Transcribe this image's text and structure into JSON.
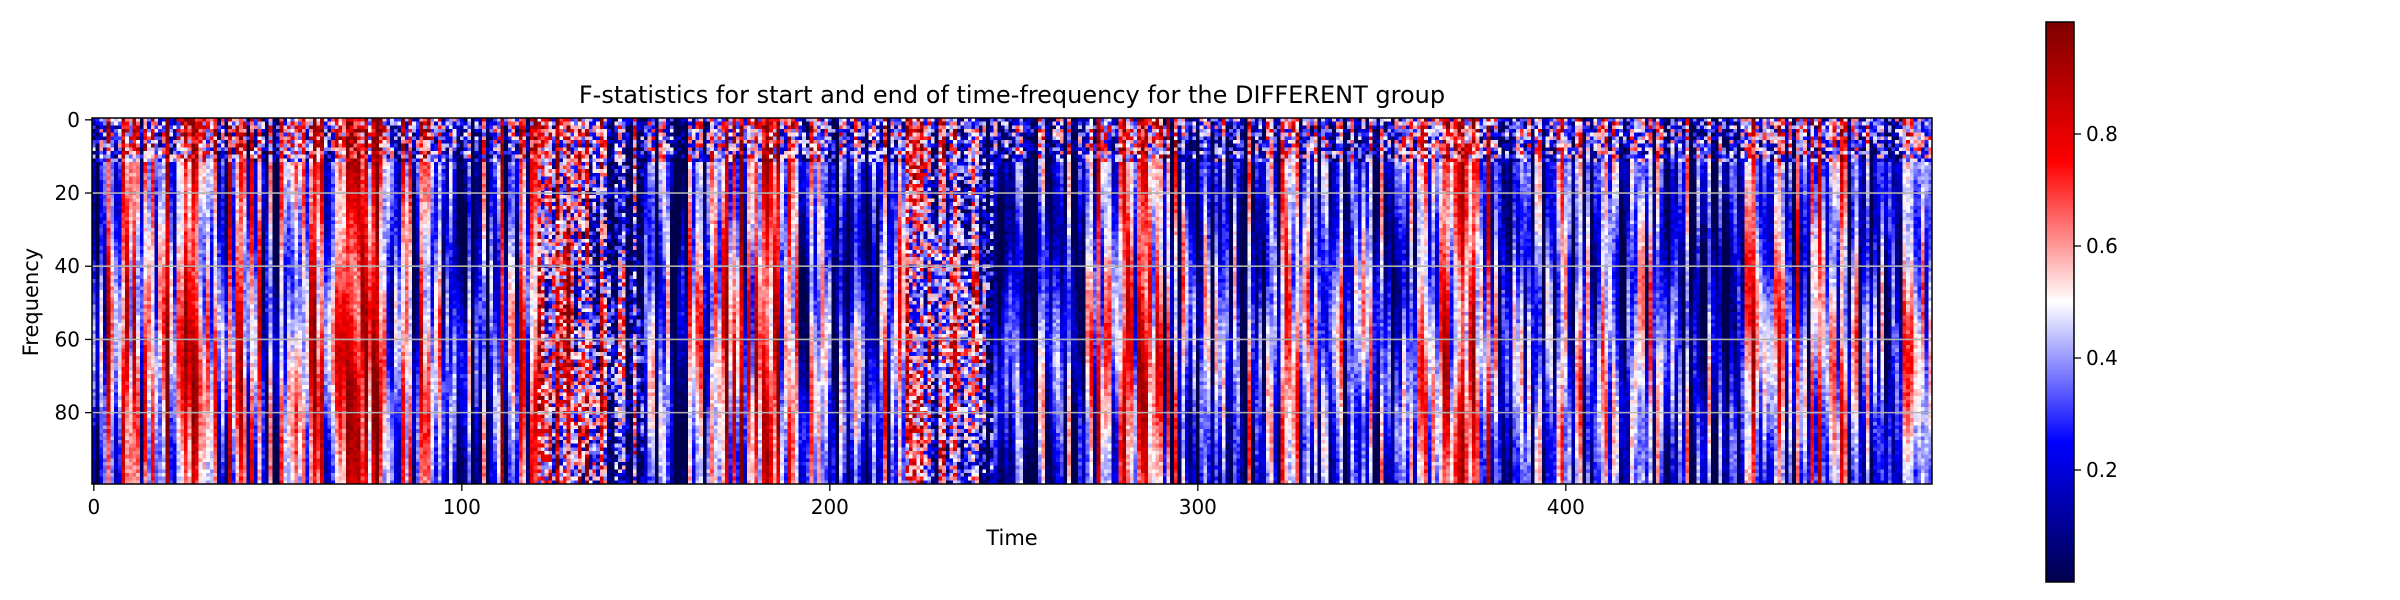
{
  "chart_data": {
    "type": "heatmap",
    "title": "F-statistics for start and end of time-frequency for the DIFFERENT group",
    "xlabel": "Time",
    "ylabel": "Frequency",
    "xlim": [
      0,
      499
    ],
    "ylim": [
      99,
      0
    ],
    "x_ticks": [
      0,
      100,
      200,
      300,
      400
    ],
    "y_ticks": [
      0,
      20,
      40,
      60,
      80
    ],
    "n_time": 500,
    "n_freq": 100,
    "grid": "horizontal",
    "colormap": "seismic",
    "colormap_colors": [
      "#00004c",
      "#0000ff",
      "#ffffff",
      "#ff0000",
      "#7f0000"
    ],
    "colorbar": {
      "range": [
        0,
        1
      ],
      "ticks": [
        "0.2",
        "0.4",
        "0.6",
        "0.8"
      ]
    },
    "column_profile_note": "values estimated from image; per-time-bin mean intensity (0-1)",
    "column_profile": [
      0.45,
      0.55,
      0.6,
      0.5,
      0.4,
      0.35,
      0.55,
      0.65,
      0.4,
      0.3,
      0.25,
      0.5,
      0.6,
      0.45,
      0.3,
      0.2,
      0.35,
      0.55,
      0.6,
      0.35,
      0.25,
      0.3,
      0.4,
      0.35,
      0.2,
      0.15,
      0.25,
      0.45,
      0.55,
      0.3,
      0.2,
      0.25,
      0.4,
      0.3,
      0.2,
      0.3,
      0.45,
      0.5,
      0.35,
      0.25,
      0.3,
      0.35,
      0.3,
      0.25,
      0.3,
      0.45,
      0.4,
      0.3,
      0.35,
      0.4
    ]
  }
}
